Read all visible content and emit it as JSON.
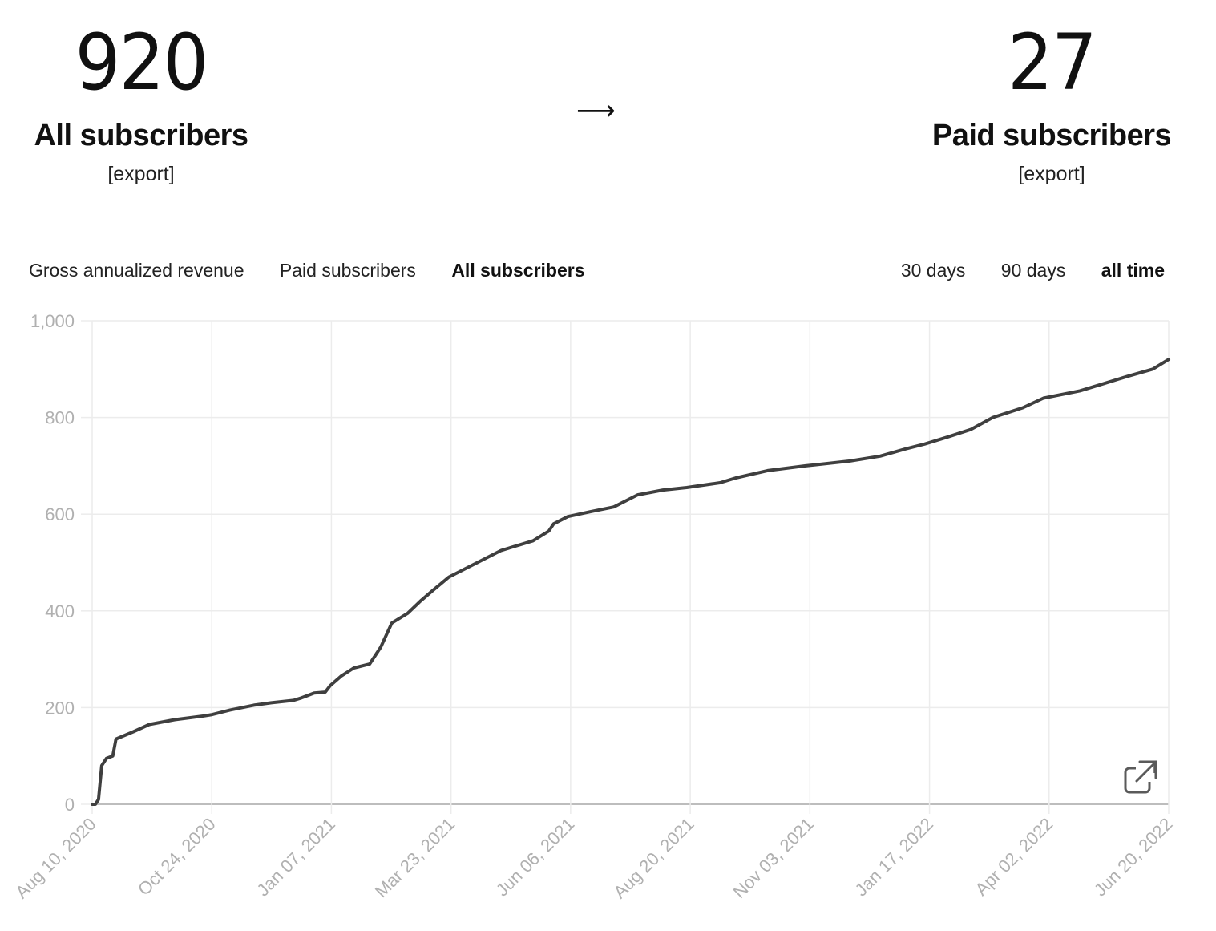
{
  "stats": {
    "all": {
      "value": "920",
      "label": "All subscribers",
      "export": "[export]"
    },
    "paid": {
      "value": "27",
      "label": "Paid subscribers",
      "export": "[export]"
    },
    "arrow": "⟶"
  },
  "metric_tabs": [
    {
      "label": "Gross annualized revenue",
      "active": false
    },
    {
      "label": "Paid subscribers",
      "active": false
    },
    {
      "label": "All subscribers",
      "active": true
    }
  ],
  "range_tabs": [
    {
      "label": "30 days",
      "active": false
    },
    {
      "label": "90 days",
      "active": false
    },
    {
      "label": "all time",
      "active": true
    }
  ],
  "icons": {
    "expand": "external-link-icon"
  },
  "colors": {
    "line": "#3f3f3f",
    "grid": "#ececec",
    "axis": "#bdbdbd",
    "tick_text": "#b0b0b0"
  },
  "chart_data": {
    "type": "line",
    "title": "",
    "xlabel": "",
    "ylabel": "",
    "ylim": [
      0,
      1000
    ],
    "yticks": [
      "0",
      "200",
      "400",
      "600",
      "800",
      "1,000"
    ],
    "xticks": [
      "Aug 10, 2020",
      "Oct 24, 2020",
      "Jan 07, 2021",
      "Mar 23, 2021",
      "Jun 06, 2021",
      "Aug 20, 2021",
      "Nov 03, 2021",
      "Jan 17, 2022",
      "Apr 02, 2022",
      "Jun 20, 2022"
    ],
    "grid": true,
    "legend": "none",
    "series": [
      {
        "x": [
          "2020-08-10",
          "2020-08-12",
          "2020-08-14",
          "2020-08-16",
          "2020-08-19",
          "2020-08-23",
          "2020-08-25",
          "2020-09-05",
          "2020-09-15",
          "2020-10-01",
          "2020-10-20",
          "2020-10-24",
          "2020-11-05",
          "2020-11-20",
          "2020-12-01",
          "2020-12-15",
          "2020-12-20",
          "2020-12-28",
          "2021-01-04",
          "2021-01-07",
          "2021-01-14",
          "2021-01-22",
          "2021-02-01",
          "2021-02-08",
          "2021-02-15",
          "2021-02-25",
          "2021-03-05",
          "2021-03-12",
          "2021-03-23",
          "2021-04-10",
          "2021-04-25",
          "2021-05-15",
          "2021-05-25",
          "2021-05-28",
          "2021-06-06",
          "2021-06-20",
          "2021-07-05",
          "2021-07-20",
          "2021-08-05",
          "2021-08-20",
          "2021-09-10",
          "2021-09-20",
          "2021-10-10",
          "2021-11-03",
          "2021-12-01",
          "2021-12-20",
          "2022-01-05",
          "2022-01-17",
          "2022-02-01",
          "2022-02-15",
          "2022-03-01",
          "2022-03-20",
          "2022-04-02",
          "2022-04-25",
          "2022-05-10",
          "2022-05-25",
          "2022-06-10",
          "2022-06-20"
        ],
        "y": [
          0,
          0,
          10,
          80,
          95,
          100,
          135,
          150,
          165,
          175,
          183,
          185,
          195,
          205,
          210,
          215,
          220,
          230,
          232,
          245,
          265,
          282,
          290,
          325,
          375,
          395,
          420,
          440,
          470,
          500,
          525,
          545,
          565,
          580,
          595,
          605,
          615,
          640,
          650,
          655,
          665,
          675,
          690,
          700,
          710,
          720,
          735,
          745,
          760,
          775,
          800,
          820,
          840,
          855,
          870,
          885,
          900,
          920
        ]
      }
    ]
  }
}
